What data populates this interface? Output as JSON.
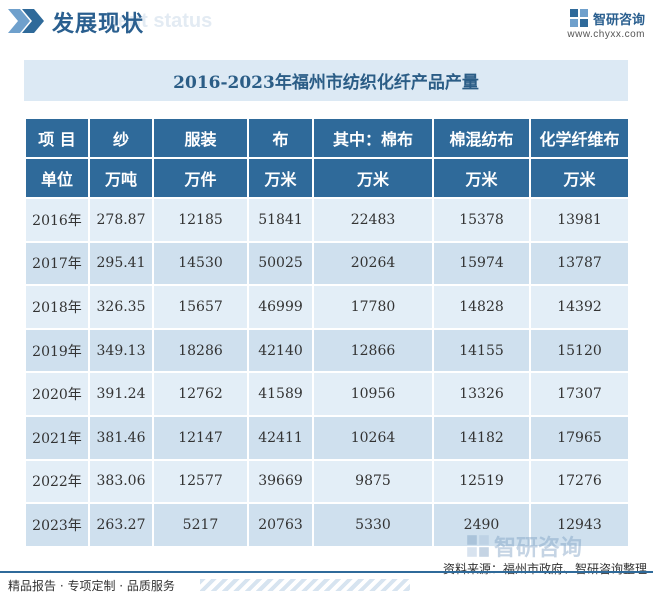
{
  "header": {
    "section_title": "发展现状",
    "section_subtitle": "ment status",
    "brand_name": "智研咨询",
    "brand_url": "www.chyxx.com"
  },
  "table_title": "2016-2023年福州市纺织化纤产品产量",
  "columns": [
    "项  目",
    "纱",
    "服装",
    "布",
    "其中：棉布",
    "棉混纺布",
    "化学纤维布"
  ],
  "units": [
    "单位",
    "万吨",
    "万件",
    "万米",
    "万米",
    "万米",
    "万米"
  ],
  "rows": [
    [
      "2016年",
      "278.87",
      "12185",
      "51841",
      "22483",
      "15378",
      "13981"
    ],
    [
      "2017年",
      "295.41",
      "14530",
      "50025",
      "20264",
      "15974",
      "13787"
    ],
    [
      "2018年",
      "326.35",
      "15657",
      "46999",
      "17780",
      "14828",
      "14392"
    ],
    [
      "2019年",
      "349.13",
      "18286",
      "42140",
      "12866",
      "14155",
      "15120"
    ],
    [
      "2020年",
      "391.24",
      "12762",
      "41589",
      "10956",
      "13326",
      "17307"
    ],
    [
      "2021年",
      "381.46",
      "12147",
      "42411",
      "10264",
      "14182",
      "17965"
    ],
    [
      "2022年",
      "383.06",
      "12577",
      "39669",
      "9875",
      "12519",
      "17276"
    ],
    [
      "2023年",
      "263.27",
      "5217",
      "20763",
      "5330",
      "2490",
      "12943"
    ]
  ],
  "source": "资料来源：福州市政府、智研咨询整理",
  "footer": "精品报告 · 专项定制 · 品质服务",
  "watermark_brand": "智研咨询",
  "colors": {
    "header_blue": "#2f6a9a",
    "row_dark": "#cfe0ee",
    "row_light": "#e3eef7",
    "title_band": "#dce9f4"
  }
}
